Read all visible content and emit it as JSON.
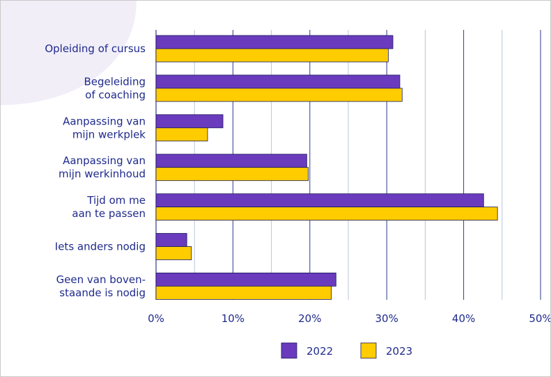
{
  "chart_data": {
    "type": "bar",
    "orientation": "horizontal",
    "categories": [
      [
        "Opleiding of cursus"
      ],
      [
        "Begeleiding",
        "of coaching"
      ],
      [
        "Aanpassing van",
        "mijn werkplek"
      ],
      [
        "Aanpassing van",
        "mijn werkinhoud"
      ],
      [
        "Tijd om me",
        "aan te passen"
      ],
      [
        "Iets anders nodig"
      ],
      [
        "Geen van boven-",
        "staande is nodig"
      ]
    ],
    "series": [
      {
        "name": "2022",
        "color": "#6a3bbd",
        "values": [
          30.8,
          31.7,
          8.7,
          19.6,
          42.6,
          4.0,
          23.4
        ]
      },
      {
        "name": "2023",
        "color": "#ffcc00",
        "values": [
          30.2,
          32.0,
          6.7,
          19.8,
          44.4,
          4.6,
          22.8
        ]
      }
    ],
    "xlim": [
      0,
      50
    ],
    "xticks": [
      0,
      10,
      20,
      30,
      40,
      50
    ],
    "tick_suffix": "%",
    "title": "",
    "xlabel": "",
    "ylabel": "",
    "legend_position": "bottom-center",
    "grid": true,
    "colors": {
      "text": "#1f2a8c",
      "major_grid": "#2e3a8c",
      "minor_grid": "#b9c3d8",
      "bar_border": "#1a1a5a",
      "decoration": "#f1eef8"
    }
  }
}
